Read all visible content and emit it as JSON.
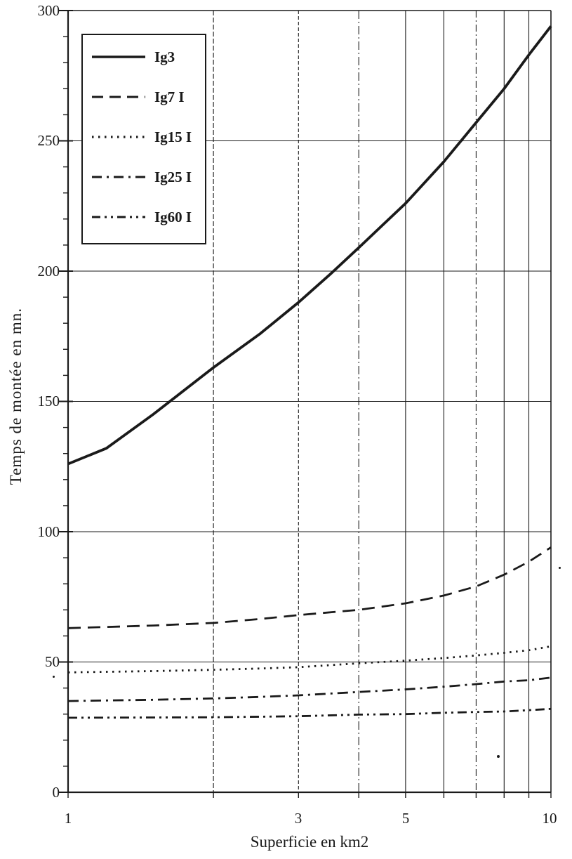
{
  "figure": {
    "background": "#ffffff",
    "ink_color": "#1a1a1a"
  },
  "chart_data": {
    "type": "line",
    "title": "",
    "xlabel": "Superficie en km2",
    "ylabel": "Temps de montée en mn.",
    "x_scale": "log",
    "xlim": [
      1,
      10
    ],
    "ylim": [
      0,
      300
    ],
    "grid": true,
    "legend_position": "top-left",
    "x_tick_labels": [
      "1",
      "3",
      "5",
      "10"
    ],
    "x_tick_values": [
      1,
      3,
      5,
      10
    ],
    "y_tick_labels": [
      "300",
      "250",
      "200",
      "150",
      "100",
      "50",
      "0"
    ],
    "y_tick_values": [
      300,
      250,
      200,
      150,
      100,
      50,
      0
    ],
    "y_minor_tick_step": 10,
    "x_gridlines": [
      2,
      3,
      4,
      5,
      6,
      7,
      8,
      9
    ],
    "y_gridlines": [
      50,
      100,
      150,
      200,
      250
    ],
    "series": [
      {
        "name": "Ig3",
        "style": "solid",
        "x": [
          1,
          1.2,
          1.5,
          2,
          2.5,
          3,
          3.5,
          4,
          4.5,
          5,
          6,
          7,
          8,
          9,
          10
        ],
        "y": [
          126,
          132,
          145,
          163,
          176,
          188,
          199,
          209,
          218,
          226,
          242,
          257,
          270,
          283,
          294
        ]
      },
      {
        "name": "Ig7 I",
        "style": "dashed",
        "x": [
          1,
          1.5,
          2,
          2.5,
          3,
          4,
          5,
          6,
          7,
          8,
          9,
          10
        ],
        "y": [
          63,
          64,
          65,
          66.5,
          68,
          70,
          72.5,
          75.5,
          79,
          83.5,
          88.5,
          94
        ]
      },
      {
        "name": "Ig15 I",
        "style": "dotted",
        "x": [
          1,
          1.5,
          2,
          2.5,
          3,
          4,
          5,
          6,
          7,
          8,
          9,
          10
        ],
        "y": [
          46,
          46.5,
          47,
          47.5,
          48,
          49.5,
          50.5,
          51.5,
          52.5,
          53.5,
          54.5,
          56
        ]
      },
      {
        "name": "Ig25 I",
        "style": "dashdot",
        "x": [
          1,
          1.5,
          2,
          2.5,
          3,
          4,
          5,
          6,
          7,
          8,
          9,
          10
        ],
        "y": [
          35,
          35.5,
          36,
          36.6,
          37.2,
          38.5,
          39.5,
          40.5,
          41.5,
          42.5,
          43,
          44
        ]
      },
      {
        "name": "Ig60 I",
        "style": "dashdotdot",
        "x": [
          1,
          1.5,
          2,
          2.5,
          3,
          4,
          5,
          6,
          7,
          8,
          9,
          10
        ],
        "y": [
          28.6,
          28.7,
          28.8,
          29,
          29.2,
          29.8,
          30,
          30.5,
          30.8,
          31,
          31.5,
          32
        ]
      }
    ]
  }
}
